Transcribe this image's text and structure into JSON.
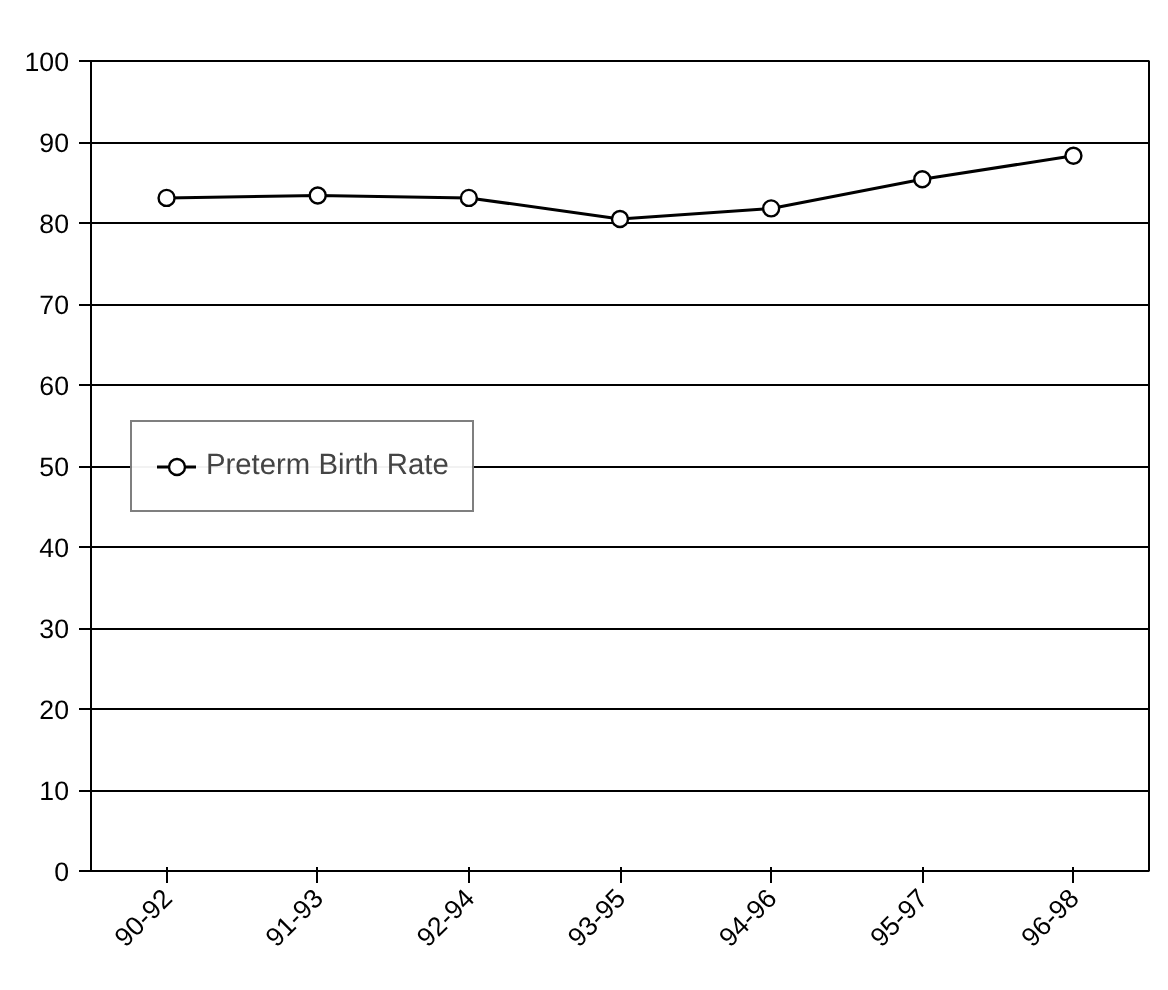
{
  "chart_data": {
    "type": "line",
    "categories": [
      "90-92",
      "91-93",
      "92-94",
      "93-95",
      "94-96",
      "95-97",
      "96-98"
    ],
    "series": [
      {
        "name": "Preterm Birth Rate",
        "color": "#000000",
        "values": [
          83.1,
          83.4,
          83.1,
          80.5,
          81.8,
          85.4,
          88.3
        ]
      }
    ],
    "ylim": [
      0,
      100
    ],
    "yticks": [
      0,
      10,
      20,
      30,
      40,
      50,
      60,
      70,
      80,
      90,
      100
    ],
    "grid": "y",
    "legend": "left",
    "marker": "circle",
    "line_style": "solid"
  }
}
